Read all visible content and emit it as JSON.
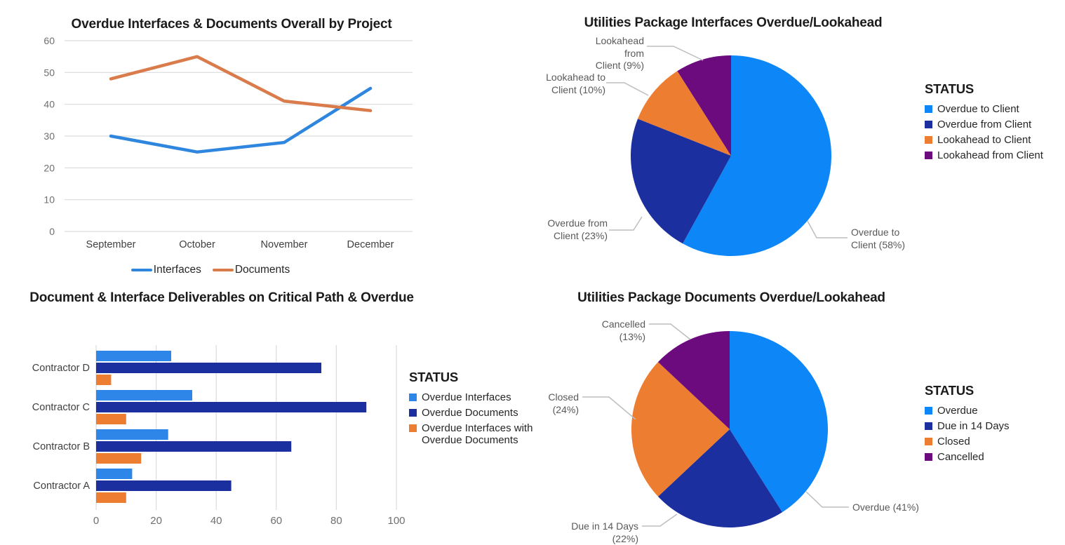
{
  "colors": {
    "light_blue": "#0D86F8",
    "dark_blue": "#1B2F9E",
    "orange": "#ED7D31",
    "purple": "#6C0B7D",
    "bar_light_blue": "#2E86E8",
    "line_blue": "#2E86DE",
    "line_orange": "#D97B4A",
    "grid": "#DCDCDC",
    "axis_text": "#6F6F6F",
    "category_text": "#3F3F3F",
    "callout_text": "#595959",
    "leader_line": "#BDBDBD",
    "title_text": "#1B1B1B",
    "legend_text": "#262626"
  },
  "chart_data": [
    {
      "type": "line",
      "title": "Overdue Interfaces & Documents Overall by Project",
      "categories": [
        "September",
        "October",
        "November",
        "December"
      ],
      "series": [
        {
          "name": "Interfaces",
          "color_key": "line_blue",
          "values": [
            30,
            25,
            28,
            45
          ]
        },
        {
          "name": "Documents",
          "color_key": "line_orange",
          "values": [
            48,
            55,
            41,
            38
          ]
        }
      ],
      "ylim": [
        0,
        60
      ],
      "yticks": [
        0,
        10,
        20,
        30,
        40,
        50,
        60
      ],
      "grid": "horizontal",
      "legend_position": "bottom"
    },
    {
      "type": "pie",
      "title": "Utilities Package Interfaces Overdue/Lookahead",
      "legend_title": "STATUS",
      "legend_position": "right",
      "slices": [
        {
          "label": "Overdue to Client",
          "pct": 58,
          "color_key": "light_blue",
          "callout_lines": [
            "Overdue to",
            "Client (58%)"
          ]
        },
        {
          "label": "Overdue from Client",
          "pct": 23,
          "color_key": "dark_blue",
          "callout_lines": [
            "Overdue from",
            "Client (23%)"
          ]
        },
        {
          "label": "Lookahead to Client",
          "pct": 10,
          "color_key": "orange",
          "callout_lines": [
            "Lookahead to",
            "Client (10%)"
          ]
        },
        {
          "label": "Lookahead from Client",
          "pct": 9,
          "color_key": "purple",
          "callout_lines": [
            "Lookahead from",
            "Client (9%)"
          ]
        }
      ]
    },
    {
      "type": "bar",
      "orientation": "horizontal",
      "title": "Document & Interface Deliverables on Critical Path & Overdue",
      "categories": [
        "Contractor D",
        "Contractor C",
        "Contractor B",
        "Contractor A"
      ],
      "series": [
        {
          "name": "Overdue Interfaces",
          "color_key": "bar_light_blue",
          "values": [
            25,
            32,
            24,
            12
          ]
        },
        {
          "name": "Overdue Documents",
          "color_key": "dark_blue",
          "values": [
            75,
            90,
            65,
            45
          ]
        },
        {
          "name": "Overdue Interfaces with Overdue Documents",
          "color_key": "orange",
          "values": [
            5,
            10,
            15,
            10
          ]
        }
      ],
      "xlim": [
        0,
        100
      ],
      "xticks": [
        0,
        20,
        40,
        60,
        80,
        100
      ],
      "grid": "vertical",
      "legend_title": "STATUS",
      "legend_position": "right"
    },
    {
      "type": "pie",
      "title": "Utilities Package Documents Overdue/Lookahead",
      "legend_title": "STATUS",
      "legend_position": "right",
      "slices": [
        {
          "label": "Overdue",
          "pct": 41,
          "color_key": "light_blue",
          "callout_lines": [
            "Overdue (41%)"
          ]
        },
        {
          "label": "Due in 14 Days",
          "pct": 22,
          "color_key": "dark_blue",
          "callout_lines": [
            "Due in 14 Days (22%)"
          ]
        },
        {
          "label": "Closed",
          "pct": 24,
          "color_key": "orange",
          "callout_lines": [
            "Closed (24%)"
          ]
        },
        {
          "label": "Cancelled",
          "pct": 13,
          "color_key": "purple",
          "callout_lines": [
            "Cancelled (13%)"
          ]
        }
      ]
    }
  ]
}
